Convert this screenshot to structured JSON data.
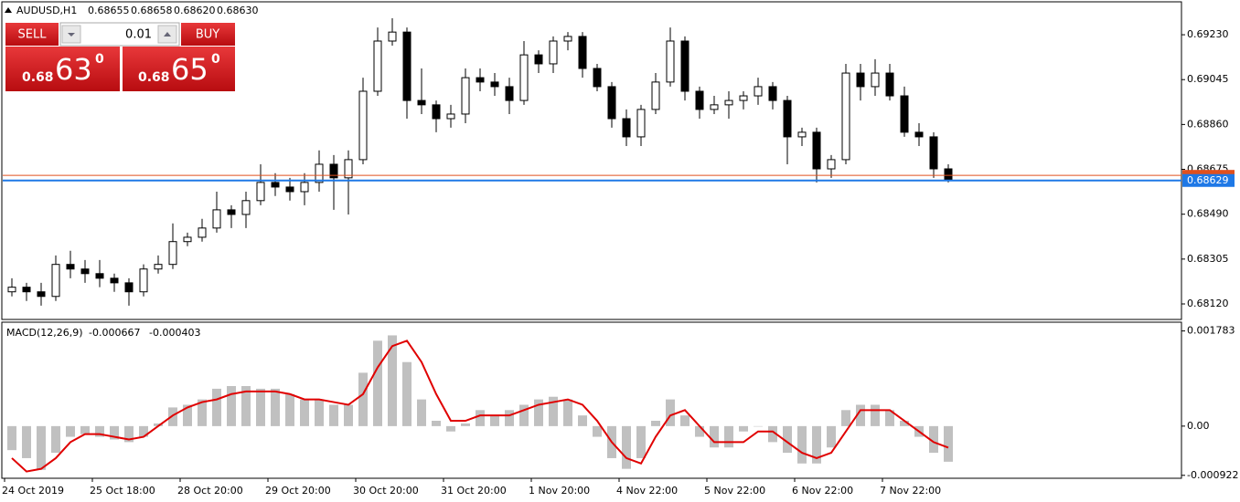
{
  "chart_data": [
    {
      "type": "candlestick",
      "title": "AUDUSD,H1",
      "header_values": [
        "0.68655",
        "0.68658",
        "0.68620",
        "0.68630"
      ],
      "open": [
        0.6817,
        0.68189,
        0.6817,
        0.68151,
        0.68283,
        0.68264,
        0.68245,
        0.68226,
        0.68207,
        0.6817,
        0.68264,
        0.68283,
        0.68377,
        0.68395,
        0.68433,
        0.68508,
        0.68489,
        0.68546,
        0.68621,
        0.68602,
        0.68583,
        0.68621,
        0.68696,
        0.6864,
        0.68715,
        0.68997,
        0.69204,
        0.69241,
        0.68959,
        0.68941,
        0.68884,
        0.68903,
        0.69053,
        0.69035,
        0.69016,
        0.68959,
        0.69147,
        0.6911,
        0.69204,
        0.69223,
        0.69091,
        0.69016,
        0.68884,
        0.68809,
        0.68922,
        0.69035,
        0.69204,
        0.68997,
        0.68922,
        0.68941,
        0.68959,
        0.68978,
        0.69016,
        0.68959,
        0.68809,
        0.68828,
        0.68677,
        0.68715,
        0.69072,
        0.69016,
        0.69072,
        0.68978,
        0.68828,
        0.68809,
        0.68677
      ],
      "high": [
        0.68226,
        0.68207,
        0.68207,
        0.6832,
        0.68339,
        0.68301,
        0.68301,
        0.68245,
        0.68226,
        0.68283,
        0.6832,
        0.68452,
        0.68414,
        0.68471,
        0.68583,
        0.68527,
        0.68583,
        0.68696,
        0.68659,
        0.6864,
        0.68659,
        0.68753,
        0.68734,
        0.68753,
        0.69053,
        0.6926,
        0.69298,
        0.6926,
        0.69091,
        0.68959,
        0.68941,
        0.69091,
        0.69091,
        0.69072,
        0.69053,
        0.69204,
        0.69166,
        0.69223,
        0.69241,
        0.69241,
        0.6911,
        0.69035,
        0.68922,
        0.68941,
        0.69072,
        0.6926,
        0.69223,
        0.69016,
        0.68978,
        0.68997,
        0.68997,
        0.69053,
        0.69035,
        0.68978,
        0.68847,
        0.68847,
        0.68734,
        0.6911,
        0.6911,
        0.69129,
        0.6911,
        0.69016,
        0.68865,
        0.68828,
        0.68696
      ],
      "low": [
        0.68151,
        0.68132,
        0.68113,
        0.68132,
        0.68226,
        0.68207,
        0.68189,
        0.6817,
        0.68113,
        0.68151,
        0.68245,
        0.68264,
        0.68358,
        0.68377,
        0.68414,
        0.68433,
        0.68433,
        0.68527,
        0.68565,
        0.68546,
        0.68527,
        0.68583,
        0.68508,
        0.68489,
        0.68696,
        0.68978,
        0.69185,
        0.68884,
        0.68903,
        0.68828,
        0.68847,
        0.68865,
        0.68997,
        0.68978,
        0.68903,
        0.68941,
        0.69072,
        0.69072,
        0.69166,
        0.69053,
        0.68997,
        0.68847,
        0.68771,
        0.68771,
        0.68903,
        0.69016,
        0.68959,
        0.68884,
        0.68903,
        0.68884,
        0.68922,
        0.68941,
        0.68922,
        0.68696,
        0.68771,
        0.68621,
        0.6864,
        0.68696,
        0.68959,
        0.68978,
        0.68959,
        0.68809,
        0.68771,
        0.6864,
        0.68621
      ],
      "close": [
        0.68189,
        0.6817,
        0.68151,
        0.68283,
        0.68264,
        0.68245,
        0.68226,
        0.68207,
        0.6817,
        0.68264,
        0.68283,
        0.68377,
        0.68395,
        0.68433,
        0.68508,
        0.68489,
        0.68546,
        0.68621,
        0.68602,
        0.68583,
        0.68621,
        0.68696,
        0.6864,
        0.68715,
        0.68997,
        0.69204,
        0.69241,
        0.68959,
        0.68941,
        0.68884,
        0.68903,
        0.69053,
        0.69035,
        0.69016,
        0.68959,
        0.69147,
        0.6911,
        0.69204,
        0.69223,
        0.69091,
        0.69016,
        0.68884,
        0.68809,
        0.68922,
        0.69035,
        0.69204,
        0.68997,
        0.68922,
        0.68941,
        0.68959,
        0.68978,
        0.69016,
        0.68959,
        0.68809,
        0.68828,
        0.68677,
        0.68715,
        0.69072,
        0.69016,
        0.69072,
        0.68978,
        0.68828,
        0.68809,
        0.68677,
        0.6863
      ],
      "up_color": "#ffffff",
      "down_color": "#000000",
      "ylim": [
        0.68056,
        0.69362
      ],
      "yticks": [
        {
          "value": 0.6923,
          "label": "0.69230"
        },
        {
          "value": 0.69045,
          "label": "0.69045"
        },
        {
          "value": 0.6886,
          "label": "0.68860"
        },
        {
          "value": 0.68675,
          "label": "0.68675"
        },
        {
          "value": 0.6849,
          "label": "0.68490"
        },
        {
          "value": 0.68305,
          "label": "0.68305"
        },
        {
          "value": 0.6812,
          "label": "0.68120"
        }
      ],
      "ask_line": {
        "value": 0.6865,
        "color": "#e0501e"
      },
      "bid_line": {
        "value": 0.68629,
        "label": "0.68629",
        "color": "#1e78e6"
      }
    },
    {
      "type": "macd",
      "title": "MACD(12,26,9)",
      "header_values": [
        "-0.000667",
        "-0.000403"
      ],
      "categories": [
        "24 Oct 2019",
        null,
        null,
        null,
        null,
        null,
        "25 Oct 18:00",
        null,
        null,
        null,
        null,
        null,
        "28 Oct 20:00",
        null,
        null,
        null,
        null,
        null,
        "29 Oct 20:00",
        null,
        null,
        null,
        null,
        null,
        "30 Oct 20:00",
        null,
        null,
        null,
        null,
        null,
        "31 Oct 20:00",
        null,
        null,
        null,
        null,
        null,
        "1 Nov 20:00",
        null,
        null,
        null,
        null,
        null,
        "4 Nov 22:00",
        null,
        null,
        null,
        null,
        null,
        "5 Nov 22:00",
        null,
        null,
        null,
        null,
        null,
        "6 Nov 22:00",
        null,
        null,
        null,
        null,
        null,
        "7 Nov 22:00",
        null,
        null,
        null,
        null
      ],
      "series": [
        {
          "type": "bar",
          "color": "#c0c0c0",
          "values": [
            -0.00045,
            -0.0006,
            -0.00082,
            -0.0005,
            -0.0002,
            -0.00015,
            -0.0002,
            -0.00025,
            -0.0003,
            -0.0002,
            5e-05,
            0.00035,
            0.0004,
            0.0005,
            0.0007,
            0.00075,
            0.00075,
            0.0007,
            0.0007,
            0.0006,
            0.0005,
            0.0005,
            0.0004,
            0.0004,
            0.001,
            0.0016,
            0.0017,
            0.0012,
            0.0005,
            0.0001,
            -0.0001,
            5e-05,
            0.0003,
            0.0002,
            0.0003,
            0.0004,
            0.0005,
            0.00055,
            0.0005,
            0.0002,
            -0.0002,
            -0.0006,
            -0.0008,
            -0.0006,
            0.0001,
            0.0005,
            0.0002,
            -0.0002,
            -0.0004,
            -0.0004,
            -0.0001,
            0,
            -0.0003,
            -0.0005,
            -0.0007,
            -0.0007,
            -0.0004,
            0.0003,
            0.0004,
            0.0004,
            0.0003,
            0.0001,
            -0.0002,
            -0.0005,
            -0.000667
          ]
        },
        {
          "type": "line",
          "color": "#e00000",
          "values": [
            -0.0006,
            -0.00085,
            -0.0008,
            -0.0006,
            -0.0003,
            -0.00015,
            -0.00015,
            -0.0002,
            -0.00025,
            -0.0002,
            0,
            0.0002,
            0.00035,
            0.00045,
            0.0005,
            0.0006,
            0.00065,
            0.00065,
            0.00065,
            0.0006,
            0.0005,
            0.0005,
            0.00045,
            0.0004,
            0.0006,
            0.0011,
            0.0015,
            0.0016,
            0.0012,
            0.0006,
            0.0001,
            0.0001,
            0.0002,
            0.0002,
            0.0002,
            0.0003,
            0.0004,
            0.00045,
            0.0005,
            0.0004,
            0.0001,
            -0.0003,
            -0.0006,
            -0.0007,
            -0.0002,
            0.0002,
            0.0003,
            0,
            -0.0003,
            -0.0003,
            -0.0003,
            -0.0001,
            -0.0001,
            -0.0003,
            -0.0005,
            -0.0006,
            -0.0005,
            -0.0001,
            0.0003,
            0.0003,
            0.0003,
            0.0001,
            -0.0001,
            -0.0003,
            -0.000403
          ]
        }
      ],
      "ylim": [
        -0.00096,
        0.00193
      ],
      "yticks": [
        0.001783,
        {
          "value": 0,
          "label": "0.00"
        },
        -0.000922
      ]
    }
  ],
  "trade_panel": {
    "sell": "SELL",
    "buy": "BUY",
    "lot": "0.01",
    "sell_price": {
      "prefix": "0.68",
      "pips": "63",
      "point": "0"
    },
    "buy_price": {
      "prefix": "0.68",
      "pips": "65",
      "point": "0"
    }
  }
}
